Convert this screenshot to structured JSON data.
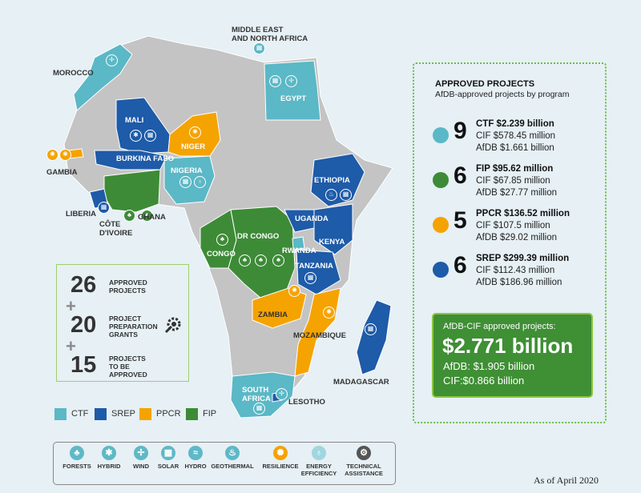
{
  "colors": {
    "ctf": "#5bb8c6",
    "srep": "#1e5ba8",
    "ppcr": "#f5a300",
    "fip": "#3d8b37",
    "land": "#c4c4c4",
    "sea": "#e6f0f5"
  },
  "map_labels": {
    "mena": [
      "MIDDLE EAST",
      "AND NORTH AFRICA"
    ],
    "morocco": "MOROCCO",
    "egypt": "EGYPT",
    "mali": "MALI",
    "niger": "NIGER",
    "burkina": "BURKINA FASO",
    "gambia": "GAMBIA",
    "nigeria": "NIGERIA",
    "ethiopia": "ETHIOPIA",
    "liberia": "LIBERIA",
    "cotedivoire": [
      "CÔTE",
      "D'IVOIRE"
    ],
    "ghana": "GHANA",
    "drcongo": "DR CONGO",
    "congo": "CONGO",
    "uganda": "UGANDA",
    "kenya": "KENYA",
    "rwanda": "RWANDA",
    "tanzania": "TANZANIA",
    "zambia": "ZAMBIA",
    "mozambique": "MOZAMBIQUE",
    "madagascar": "MADAGASCAR",
    "southafrica": [
      "SOUTH",
      "AFRICA"
    ],
    "lesotho": "LESOTHO"
  },
  "panel": {
    "title": "APPROVED PROJECTS",
    "subtitle": "AfDB-approved projects by program",
    "programs": [
      {
        "count": "9",
        "line1": "CTF $2.239 billion",
        "line2": "CIF $578.45 million",
        "line3": "AfDB $1.661 billion",
        "color": "#5bb8c6"
      },
      {
        "count": "6",
        "line1": "FIP $95.62 million",
        "line2": "CIF $67.85 million",
        "line3": "AfDB $27.77 million",
        "color": "#3d8b37"
      },
      {
        "count": "5",
        "line1": "PPCR $136.52 million",
        "line2": "CIF $107.5 million",
        "line3": "AfDB $29.02 million",
        "color": "#f5a300"
      },
      {
        "count": "6",
        "line1": "SREP $299.39 million",
        "line2": "CIF $112.43 million",
        "line3": "AfDB $186.96 million",
        "color": "#1e5ba8"
      }
    ],
    "total": {
      "label": "AfDB-CIF approved projects:",
      "amount": "$2.771 billion",
      "afdb": "AfDB: $1.905 billion",
      "cif": "CIF:$0.866 billion"
    }
  },
  "stats": {
    "approved": {
      "num": "26",
      "label": [
        "APPROVED",
        "PROJECTS"
      ]
    },
    "grants": {
      "num": "20",
      "label": [
        "PROJECT",
        "PREPARATION",
        "GRANTS"
      ]
    },
    "tobe": {
      "num": "15",
      "label": [
        "PROJECTS",
        "TO BE",
        "APPROVED"
      ]
    },
    "plus": "+"
  },
  "program_key": [
    {
      "label": "CTF",
      "color": "#5bb8c6"
    },
    {
      "label": "SREP",
      "color": "#1e5ba8"
    },
    {
      "label": "PPCR",
      "color": "#f5a300"
    },
    {
      "label": "FIP",
      "color": "#3d8b37"
    }
  ],
  "icon_legend": [
    {
      "icon": "forests-icon",
      "label": [
        "FORESTS"
      ],
      "glyph": "♣"
    },
    {
      "icon": "hybrid-icon",
      "label": [
        "HYBRID"
      ],
      "glyph": "✱"
    },
    {
      "icon": "wind-icon",
      "label": [
        "WIND"
      ],
      "glyph": "✢"
    },
    {
      "icon": "solar-icon",
      "label": [
        "SOLAR"
      ],
      "glyph": "▦"
    },
    {
      "icon": "hydro-icon",
      "label": [
        "HYDRO"
      ],
      "glyph": "≈"
    },
    {
      "icon": "geothermal-icon",
      "label": [
        "GEOTHERMAL"
      ],
      "glyph": "♨"
    },
    {
      "icon": "resilience-icon",
      "label": [
        "RESILIENCE"
      ],
      "glyph": "✺"
    },
    {
      "icon": "energy-efficiency-icon",
      "label": [
        "ENERGY",
        "EFFICIENCY"
      ],
      "glyph": "♁"
    },
    {
      "icon": "technical-assistance-icon",
      "label": [
        "TECHNICAL",
        "ASSISTANCE"
      ],
      "glyph": "⚙"
    }
  ],
  "footer": "As of April 2020"
}
